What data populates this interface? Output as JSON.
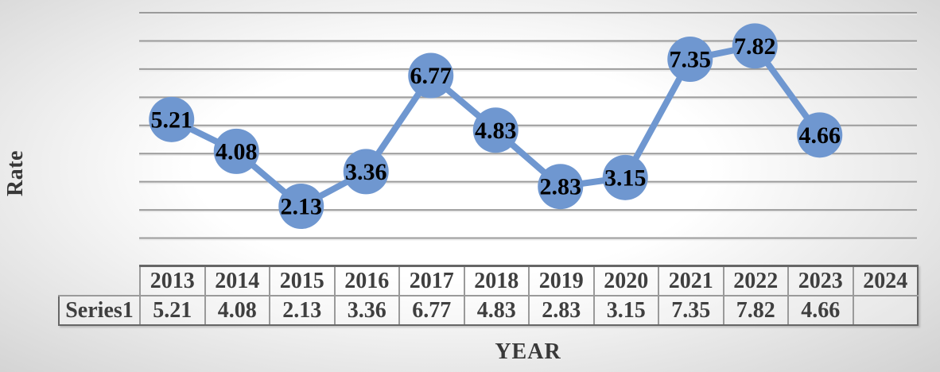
{
  "chart_data": {
    "type": "line",
    "title": "",
    "xlabel": "YEAR",
    "ylabel": "Rate",
    "categories": [
      "2013",
      "2014",
      "2015",
      "2016",
      "2017",
      "2018",
      "2019",
      "2020",
      "2021",
      "2022",
      "2023",
      "2024"
    ],
    "series": [
      {
        "name": "Series1",
        "values": [
          5.21,
          4.08,
          2.13,
          3.36,
          6.77,
          4.83,
          2.83,
          3.15,
          7.35,
          7.82,
          4.66,
          null
        ]
      }
    ],
    "ylim": [
      0,
      9
    ],
    "y_major_unit": 1,
    "grid": true,
    "y_tick_labels_shown": false,
    "legend_position": "none",
    "data_labels_position": "center",
    "marker_style": "circle",
    "data_table_shown": true
  },
  "colors": {
    "series_blue": "#6f97d0",
    "gridline": "#9b9b9b",
    "gridline_light": "#e9e9e9",
    "label_text": "#000000",
    "table_text": "#3f3f3f",
    "axis_title": "#383838",
    "border_outer": "#666666",
    "border_inner": "#9a9a9a",
    "bg_edge": "#d2d2d2",
    "bg_center": "#ffffff"
  }
}
